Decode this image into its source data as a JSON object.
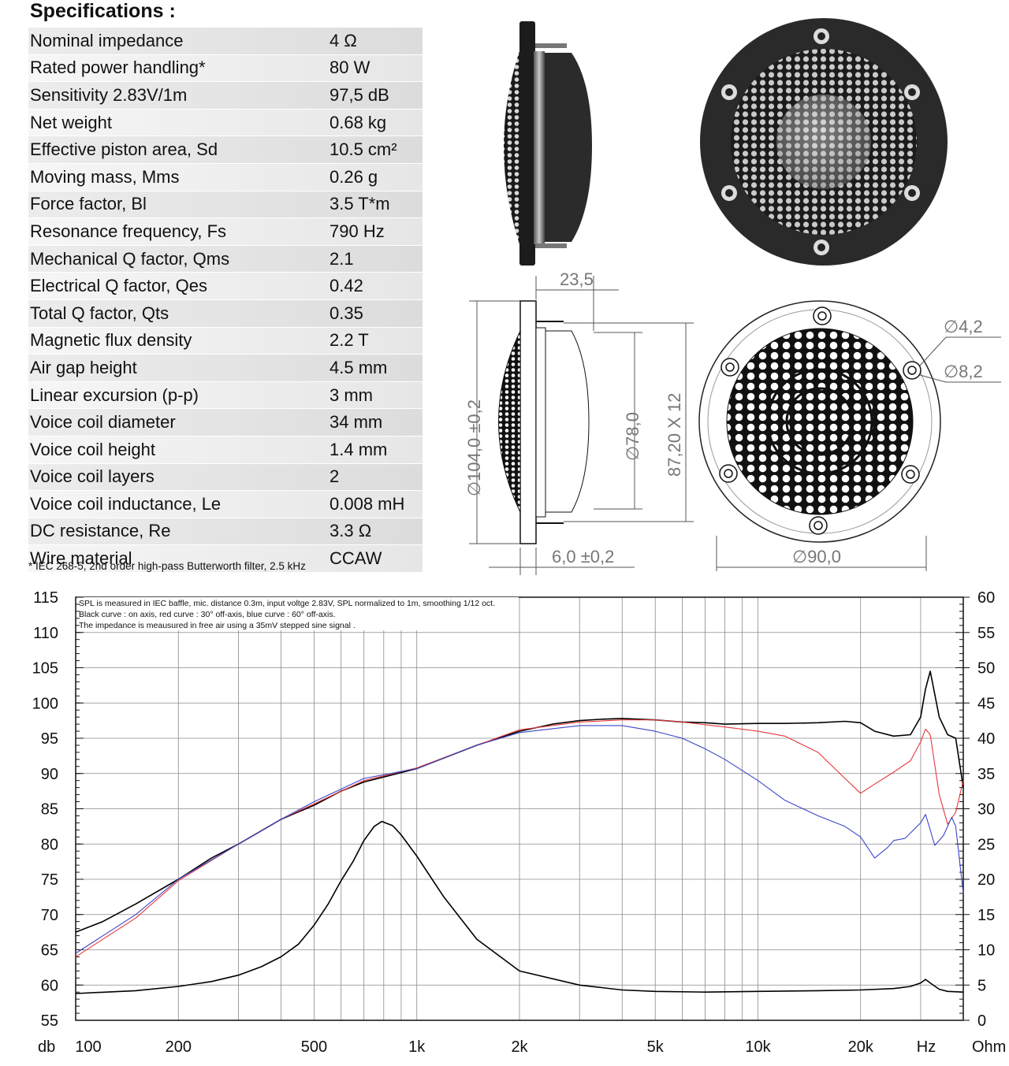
{
  "specifications": {
    "title": "Specifications :",
    "rows": [
      {
        "name": "Nominal impedance",
        "value": "4 Ω"
      },
      {
        "name": "Rated power handling*",
        "value": "80 W"
      },
      {
        "name": "Sensitivity 2.83V/1m",
        "value": "97,5 dB"
      },
      {
        "name": "Net weight",
        "value": "0.68 kg"
      },
      {
        "name": "Effective piston area, Sd",
        "value": "10.5 cm²"
      },
      {
        "name": "Moving mass, Mms",
        "value": "0.26 g"
      },
      {
        "name": "Force factor, Bl",
        "value": "3.5 T*m"
      },
      {
        "name": "Resonance frequency, Fs",
        "value": "790 Hz"
      },
      {
        "name": "Mechanical Q factor, Qms",
        "value": "2.1"
      },
      {
        "name": "Electrical Q factor, Qes",
        "value": "0.42"
      },
      {
        "name": "Total Q factor, Qts",
        "value": "0.35"
      },
      {
        "name": "Magnetic flux density",
        "value": "2.2 T"
      },
      {
        "name": "Air gap height",
        "value": "4.5 mm"
      },
      {
        "name": "Linear excursion (p-p)",
        "value": "3 mm"
      },
      {
        "name": "Voice coil diameter",
        "value": "34 mm"
      },
      {
        "name": "Voice coil height",
        "value": "1.4 mm"
      },
      {
        "name": "Voice coil layers",
        "value": "2"
      },
      {
        "name": "Voice coil inductance, Le",
        "value": "0.008 mH"
      },
      {
        "name": "DC resistance, Re",
        "value": "3.3 Ω"
      },
      {
        "name": "Wire material",
        "value": "CCAW"
      }
    ],
    "footnote": "* IEC 268-5, 2nd order high-pass Butterworth filter, 2.5 kHz"
  },
  "dimensions": {
    "depth": "23,5",
    "outer_diameter": "∅104,0 ±0,2",
    "dome_diameter": "∅78,0",
    "mount_holes": "87,20 X 12",
    "flange_thickness": "6,0 ±0,2",
    "hole_small": "∅4,2",
    "hole_large": "∅8,2",
    "front_diameter": "∅90,0"
  },
  "colors": {
    "on_axis": "#000000",
    "off_axis_30": "#e8383b",
    "off_axis_60": "#3c46c8",
    "impedance": "#000000",
    "table_row": "#e2e2e2"
  },
  "chart_data": {
    "type": "line",
    "notes": [
      "SPL is measured in IEC baffle, mic. distance 0.3m, input voltge 2.83V, SPL normalized to 1m, smoothing 1/12 oct.",
      "Black curve : on axis, red curve : 30° off-axis, blue curve : 60° off-axis.",
      "The impedance is meausured in free air using a 35mV stepped sine signal ."
    ],
    "x_scale": "log",
    "xlim": [
      100,
      40000
    ],
    "x_ticks": [
      100,
      200,
      500,
      1000,
      2000,
      5000,
      10000,
      20000
    ],
    "x_tick_labels": [
      "100",
      "200",
      "500",
      "1k",
      "2k",
      "5k",
      "10k",
      "20k"
    ],
    "x_unit_label": "Hz",
    "ylabel_left": "db",
    "ylabel_right": "Ohm",
    "ylim_left": [
      55,
      115
    ],
    "ylim_right": [
      0,
      60
    ],
    "left_ticks": [
      55,
      60,
      65,
      70,
      75,
      80,
      85,
      90,
      95,
      100,
      105,
      110,
      115
    ],
    "right_ticks": [
      0,
      5,
      10,
      15,
      20,
      25,
      30,
      35,
      40,
      45,
      50,
      55,
      60
    ],
    "grid": true,
    "series": [
      {
        "axis": "left",
        "color": "#000000",
        "x": [
          100,
          120,
          150,
          200,
          250,
          300,
          400,
          500,
          600,
          700,
          800,
          1000,
          1200,
          1500,
          2000,
          2500,
          3000,
          3500,
          4000,
          5000,
          6000,
          7000,
          8000,
          10000,
          12000,
          15000,
          18000,
          20000,
          22000,
          25000,
          28000,
          30000,
          31000,
          32000,
          34000,
          36000,
          38000,
          40000
        ],
        "y": [
          67.5,
          69,
          71.5,
          75,
          78,
          80,
          83.5,
          85.5,
          87.5,
          88.8,
          89.5,
          90.7,
          92.2,
          94,
          96,
          97,
          97.5,
          97.7,
          97.8,
          97.6,
          97.3,
          97.2,
          97,
          97.1,
          97.1,
          97.2,
          97.4,
          97.2,
          96,
          95.3,
          95.5,
          98,
          102,
          104.5,
          98,
          95.5,
          95,
          88
        ]
      },
      {
        "axis": "left",
        "color": "#e8383b",
        "x": [
          100,
          150,
          200,
          300,
          400,
          500,
          700,
          1000,
          1500,
          2000,
          3000,
          4000,
          5000,
          6000,
          8000,
          10000,
          12000,
          15000,
          18000,
          20000,
          22000,
          25000,
          28000,
          30000,
          31000,
          32000,
          34000,
          36000,
          38000,
          40000
        ],
        "y": [
          64,
          69.5,
          74.8,
          80,
          83.5,
          85.7,
          89,
          90.8,
          94,
          96.2,
          97.3,
          97.6,
          97.6,
          97.3,
          96.6,
          96,
          95.3,
          93,
          89.3,
          87.2,
          88.5,
          90.2,
          91.8,
          94.5,
          96.3,
          95.5,
          87,
          82.8,
          84.5,
          89
        ]
      },
      {
        "axis": "left",
        "color": "#3c46c8",
        "x": [
          100,
          150,
          200,
          300,
          400,
          500,
          700,
          1000,
          1500,
          2000,
          3000,
          4000,
          5000,
          6000,
          7000,
          8000,
          10000,
          12000,
          15000,
          18000,
          20000,
          22000,
          24000,
          25000,
          27000,
          30000,
          31000,
          32000,
          33000,
          35000,
          37000,
          38000,
          40000
        ],
        "y": [
          64.5,
          70,
          75,
          80,
          83.5,
          86,
          89.3,
          90.7,
          94,
          95.8,
          96.8,
          96.8,
          96,
          95,
          93.5,
          92,
          89,
          86.2,
          84,
          82.5,
          81,
          78,
          79.5,
          80.5,
          80.8,
          83,
          84.2,
          82,
          79.8,
          81.2,
          83.8,
          82.5,
          73
        ]
      },
      {
        "axis": "right",
        "color": "#000000",
        "x": [
          100,
          150,
          200,
          250,
          300,
          350,
          400,
          450,
          500,
          550,
          600,
          650,
          700,
          750,
          790,
          850,
          900,
          1000,
          1200,
          1500,
          2000,
          3000,
          4000,
          5000,
          7000,
          10000,
          15000,
          20000,
          25000,
          28000,
          30000,
          31000,
          32000,
          34000,
          36000,
          40000
        ],
        "y": [
          3.8,
          4.2,
          4.8,
          5.5,
          6.4,
          7.6,
          9,
          10.8,
          13.5,
          16.5,
          19.8,
          22.5,
          25.5,
          27.5,
          28.2,
          27.6,
          26.3,
          23.3,
          17.5,
          11.5,
          7,
          5,
          4.3,
          4.1,
          4,
          4.1,
          4.2,
          4.3,
          4.5,
          4.8,
          5.3,
          5.8,
          5.3,
          4.4,
          4.1,
          4
        ]
      }
    ]
  }
}
